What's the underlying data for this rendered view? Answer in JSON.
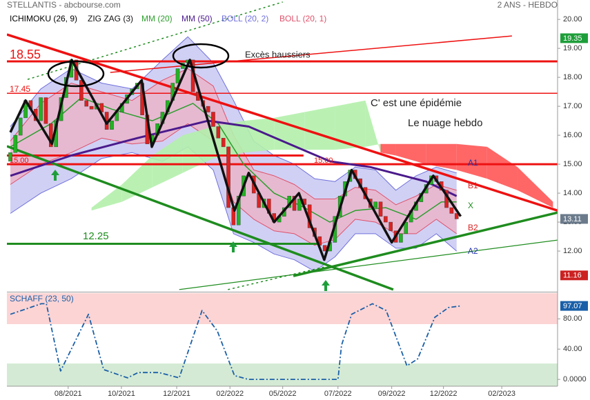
{
  "chart_data": [
    {
      "type": "candlestick",
      "title": "STELLANTIS - abcbourse.com",
      "subtitle": "2 ANS - HEBDO",
      "open": [
        15.1,
        15.4,
        16.0,
        16.6,
        17.2,
        16.9,
        16.5,
        17.3,
        16.4,
        15.6,
        16.5,
        17.3,
        18.0,
        18.6,
        17.9,
        17.2,
        17.0,
        16.9,
        17.1,
        16.8,
        16.2,
        16.5,
        16.8,
        17.1,
        17.4,
        17.6,
        17.8,
        16.7,
        15.7,
        16.0,
        16.4,
        16.8,
        17.2,
        17.8,
        18.3,
        18.5,
        18.6,
        17.5,
        17.2,
        17.0,
        16.8,
        16.3,
        15.9,
        15.6,
        13.5,
        12.9,
        13.9,
        14.6,
        14.6,
        14.0,
        13.5,
        13.8,
        13.3,
        13.0,
        13.2,
        13.5,
        13.9,
        13.4,
        13.8,
        13.6,
        12.8,
        12.5,
        12.2,
        12.0,
        12.3,
        13.2,
        13.9,
        14.4,
        14.8,
        14.5,
        14.2,
        13.8,
        13.5,
        13.7,
        13.2,
        13.0,
        12.7,
        12.3,
        12.6,
        13.0,
        13.4,
        13.7,
        14.0,
        14.3,
        14.6,
        14.4,
        14.1,
        13.5,
        13.3
      ],
      "close": [
        15.4,
        16.0,
        16.6,
        17.2,
        16.9,
        16.5,
        17.3,
        16.4,
        15.6,
        16.5,
        17.3,
        18.0,
        18.6,
        17.9,
        17.2,
        17.0,
        16.9,
        17.1,
        16.8,
        16.2,
        16.5,
        16.8,
        17.1,
        17.4,
        17.6,
        17.8,
        16.7,
        15.7,
        16.0,
        16.4,
        16.8,
        17.2,
        17.8,
        18.3,
        18.5,
        18.6,
        17.5,
        17.2,
        17.0,
        16.8,
        16.3,
        15.9,
        15.6,
        13.5,
        12.9,
        13.9,
        14.6,
        14.6,
        14.0,
        13.5,
        13.8,
        13.3,
        13.0,
        13.2,
        13.5,
        13.9,
        13.4,
        13.8,
        13.6,
        12.8,
        12.5,
        12.2,
        12.0,
        12.3,
        13.2,
        13.9,
        14.4,
        14.8,
        14.5,
        14.2,
        13.8,
        13.5,
        13.7,
        13.2,
        13.0,
        12.7,
        12.3,
        12.6,
        13.0,
        13.4,
        13.7,
        14.0,
        14.3,
        14.6,
        14.4,
        14.1,
        13.5,
        13.3,
        13.11
      ],
      "up_color": "#22b322",
      "down_color": "#dd2222",
      "xlim": [
        -0.68,
        107.9
      ],
      "ylim": [
        10.62,
        20.67
      ],
      "yticks": [
        {
          "value": 20,
          "label": "20.00"
        },
        {
          "value": 19,
          "label": "19.00"
        },
        {
          "value": 18,
          "label": "18.00"
        },
        {
          "value": 17,
          "label": "17.00"
        },
        {
          "value": 16,
          "label": "16.00"
        },
        {
          "value": 15,
          "label": "15.00"
        },
        {
          "value": 14,
          "label": "14.00"
        },
        {
          "value": 13,
          "label": "13.00"
        },
        {
          "value": 12,
          "label": "12.00"
        }
      ],
      "high_label": 19.35,
      "high_color": "#1e9e3a",
      "low_label": 11.16,
      "low_color": "#cc2222",
      "last_color": "#6b7b8c",
      "ichimoku": {
        "name": "ICHIMOKU (26, 9)",
        "color": "#000000",
        "up_color": "#b3efab",
        "down_color": "#ff5555",
        "x": [
          16,
          22,
          28,
          34,
          40,
          46,
          52,
          58,
          64,
          70,
          73,
          76,
          82,
          88,
          94,
          100,
          107
        ],
        "span_a": [
          13.5,
          14.3,
          15.3,
          16.0,
          16.3,
          16.5,
          16.6,
          16.8,
          17.0,
          17.2,
          15.4,
          15.3,
          15.0,
          14.8,
          14.5,
          14.1,
          13.5
        ],
        "span_b": [
          13.4,
          13.7,
          14.2,
          14.7,
          15.2,
          15.4,
          15.5,
          15.5,
          15.5,
          15.6,
          15.7,
          15.7,
          15.7,
          15.7,
          15.6,
          14.9,
          13.7
        ]
      },
      "bands": [
        {
          "name": "BOLL (20, 2)",
          "color": "#6f6fdc",
          "fill": "#cbcbf3",
          "x": [
            0,
            6,
            12,
            18,
            24,
            30,
            35,
            40,
            44,
            48,
            52,
            56,
            60,
            64,
            68,
            72,
            76,
            80,
            84,
            88
          ],
          "upper": [
            16.3,
            17.6,
            18.3,
            17.8,
            17.6,
            18.6,
            19.4,
            18.5,
            17.2,
            15.8,
            15.3,
            15.0,
            14.5,
            14.4,
            14.9,
            14.8,
            14.1,
            14.6,
            14.9,
            14.7
          ],
          "lower": [
            13.3,
            14.0,
            14.5,
            15.2,
            15.4,
            15.1,
            15.6,
            14.8,
            12.6,
            12.3,
            11.9,
            11.7,
            11.3,
            11.8,
            12.6,
            12.6,
            12.1,
            12.1,
            12.6,
            12.0
          ]
        },
        {
          "name": "BOLL (20, 1)",
          "color": "#e0506a",
          "fill": "#e8b6cd",
          "x": [
            0,
            6,
            12,
            18,
            24,
            30,
            35,
            40,
            44,
            48,
            52,
            56,
            60,
            64,
            68,
            72,
            76,
            80,
            84,
            88
          ],
          "upper": [
            15.8,
            17.1,
            17.8,
            17.5,
            17.2,
            17.9,
            18.3,
            17.7,
            16.0,
            14.8,
            14.6,
            14.3,
            13.8,
            13.8,
            14.2,
            14.1,
            13.6,
            13.9,
            14.3,
            14.1
          ],
          "lower": [
            14.3,
            15.0,
            15.4,
            15.9,
            15.7,
            15.8,
            16.4,
            15.8,
            13.7,
            13.1,
            12.7,
            12.6,
            12.2,
            12.4,
            13.1,
            13.0,
            12.6,
            12.6,
            13.1,
            12.6
          ]
        }
      ],
      "series": [
        {
          "name": "ZIG ZAG (3)",
          "color": "#111111",
          "width": 3.5,
          "x": [
            0,
            3,
            8.2,
            12.1,
            19,
            25.9,
            27.9,
            35.4,
            44.2,
            47,
            52,
            56.9,
            61.9,
            67.3,
            75.2,
            83.4,
            88.8
          ],
          "values": [
            16.1,
            17.2,
            15.7,
            18.6,
            16.4,
            17.9,
            15.6,
            18.6,
            13.4,
            14.7,
            13.0,
            14.0,
            11.7,
            14.8,
            12.3,
            14.6,
            13.2
          ]
        },
        {
          "name": "MM (20)",
          "color": "#2c9e2c",
          "width": 1.5,
          "x": [
            0,
            8,
            14,
            20,
            28,
            36,
            41,
            46,
            52,
            58,
            63,
            68,
            74,
            80,
            85,
            88
          ],
          "values": [
            15.6,
            16.4,
            17.3,
            16.9,
            16.5,
            17.1,
            16.4,
            15.0,
            14.0,
            13.5,
            13.0,
            13.4,
            13.5,
            13.1,
            13.7,
            13.7
          ]
        },
        {
          "name": "MM (50)",
          "color": "#4b1a8c",
          "width": 3,
          "x": [
            0,
            12,
            25,
            39,
            47,
            55,
            63,
            71,
            82,
            88
          ],
          "values": [
            14.6,
            15.3,
            15.9,
            16.5,
            16.3,
            15.7,
            15.1,
            14.9,
            14.4,
            13.9
          ]
        }
      ],
      "levels": [
        {
          "value": 18.55,
          "color": "#ee1111",
          "width": 3
        },
        {
          "value": 17.45,
          "color": "#ee1111",
          "width": 1.5
        },
        {
          "value": 15.3,
          "color": "#ee1111",
          "width": 3,
          "x": [
            -0.68,
            57.8
          ]
        },
        {
          "value": 15,
          "color": "#ee1111",
          "width": 3
        },
        {
          "value": 12.25,
          "color": "#1e8c1e",
          "width": 3,
          "x": [
            -0.68,
            60.5
          ]
        }
      ],
      "trendlines": [
        {
          "color": "#ee1111",
          "width": 3.5,
          "x": [
            -0.68,
            107.9
          ],
          "values": [
            19.48,
            13.4
          ]
        },
        {
          "color": "#ee1111",
          "width": 1.5,
          "x": [
            19.7,
            98.9
          ],
          "values": [
            18.17,
            19.43
          ]
        },
        {
          "color": "#1e8c1e",
          "width": 3.5,
          "x": [
            -0.68,
            75.5
          ],
          "values": [
            15.62,
            10.67
          ]
        },
        {
          "color": "#1e8c1e",
          "width": 3.5,
          "x": [
            55.8,
            107.9
          ],
          "values": [
            11.14,
            13.33
          ]
        },
        {
          "color": "#1e8c1e",
          "width": 1.2,
          "x": [
            33.3,
            107.9
          ],
          "values": [
            10.67,
            12.38
          ]
        },
        {
          "color": "#1e8c1e",
          "width": 1.5,
          "dash": true,
          "x": [
            3.4,
            53.7
          ],
          "values": [
            17.93,
            20.6
          ]
        },
        {
          "color": "#1e8c1e",
          "width": 1.5,
          "dash": true,
          "x": [
            42.9,
            61.9
          ],
          "values": [
            10.67,
            11.45
          ]
        }
      ],
      "annotations": [
        "18.55",
        "17.45",
        "15.00",
        "15.00",
        "12.25",
        "Excès haussiers",
        "C' est une épidémie",
        "Le nuage hebdo",
        "A1",
        "B1",
        "X",
        "B2",
        "A2"
      ]
    },
    {
      "type": "line",
      "title": "SCHAFF (23, 50)",
      "color": "#1a5fa8",
      "x": [
        0,
        6.1,
        7.1,
        9.9,
        15.4,
        18.4,
        23.1,
        25.2,
        29.3,
        33.3,
        37.8,
        40.8,
        44.2,
        46.9,
        64.6,
        65.3,
        67.3,
        71.4,
        74.1,
        78.2,
        80.3,
        83.7,
        86.4,
        88.8
      ],
      "values": [
        86,
        100,
        100,
        11,
        86,
        13,
        2,
        9,
        9,
        2,
        91,
        64,
        5,
        0,
        0,
        45,
        86,
        100,
        91,
        18,
        27,
        82,
        95,
        97.07
      ],
      "xlim": [
        -0.68,
        107.9
      ],
      "xticks": [
        {
          "value": 11.4,
          "label": "08/2021"
        },
        {
          "value": 21.9,
          "label": "10/2021"
        },
        {
          "value": 32.8,
          "label": "12/2021"
        },
        {
          "value": 43.3,
          "label": "02/2022"
        },
        {
          "value": 53.7,
          "label": "05/2022"
        },
        {
          "value": 64.6,
          "label": "07/2022"
        },
        {
          "value": 75.2,
          "label": "09/2022"
        },
        {
          "value": 85.4,
          "label": "12/2022"
        },
        {
          "value": 96.9,
          "label": "02/2023"
        }
      ],
      "ylim": [
        -9,
        114
      ],
      "yticks": [
        {
          "value": 80,
          "label": "80.00"
        },
        {
          "value": 40,
          "label": "40.00"
        },
        {
          "value": 0,
          "label": "0.0000"
        }
      ],
      "zones": [
        {
          "from": 73,
          "to": 114,
          "color": "#fcd4d4"
        },
        {
          "from": -9,
          "to": 21,
          "color": "#d4ead4"
        }
      ]
    }
  ]
}
